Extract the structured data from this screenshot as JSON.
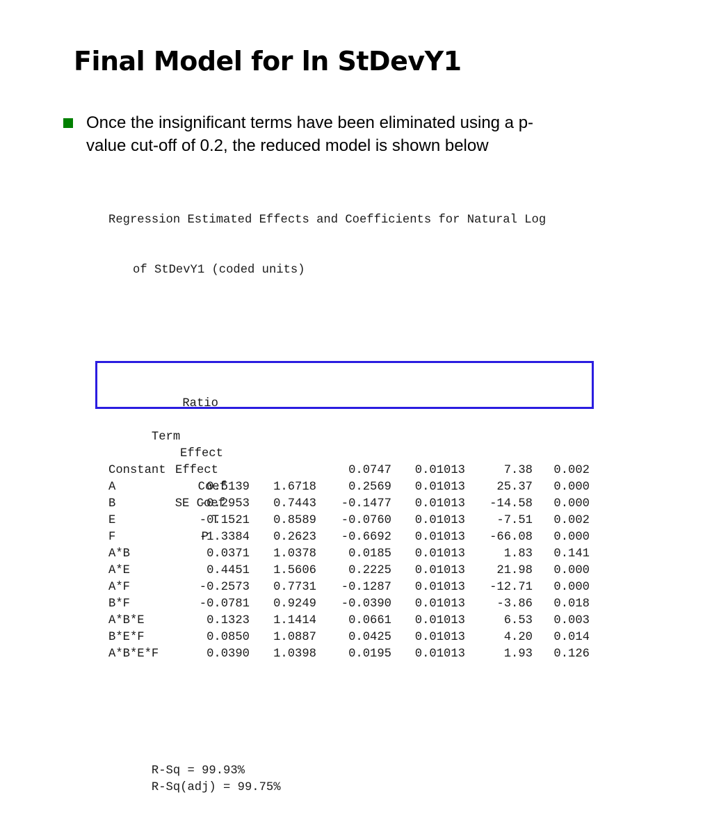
{
  "slide": {
    "title": "Final Model for ln StDevY1",
    "bullet": {
      "lines": [
        "Once the insignificant terms have been eliminated using a p-",
        "value cut-off of 0.2, the reduced model is shown below"
      ],
      "marker_color": "#008000"
    }
  },
  "regression_output": {
    "heading_line1": "Regression Estimated Effects and Coefficients for Natural Log",
    "heading_line2": "of StDevY1 (coded units)",
    "header_top": {
      "ratio": "Ratio"
    },
    "columns": [
      "Term",
      "Effect",
      "Effect",
      "Coef",
      "SE Coef",
      "T",
      "P"
    ],
    "rows": [
      [
        "Constant",
        "",
        "",
        "0.0747",
        "0.01013",
        "7.38",
        "0.002"
      ],
      [
        "A",
        "0.5139",
        "1.6718",
        "0.2569",
        "0.01013",
        "25.37",
        "0.000"
      ],
      [
        "B",
        "-0.2953",
        "0.7443",
        "-0.1477",
        "0.01013",
        "-14.58",
        "0.000"
      ],
      [
        "E",
        "-0.1521",
        "0.8589",
        "-0.0760",
        "0.01013",
        "-7.51",
        "0.002"
      ],
      [
        "F",
        "-1.3384",
        "0.2623",
        "-0.6692",
        "0.01013",
        "-66.08",
        "0.000"
      ],
      [
        "A*B",
        "0.0371",
        "1.0378",
        "0.0185",
        "0.01013",
        "1.83",
        "0.141"
      ],
      [
        "A*E",
        "0.4451",
        "1.5606",
        "0.2225",
        "0.01013",
        "21.98",
        "0.000"
      ],
      [
        "A*F",
        "-0.2573",
        "0.7731",
        "-0.1287",
        "0.01013",
        "-12.71",
        "0.000"
      ],
      [
        "B*F",
        "-0.0781",
        "0.9249",
        "-0.0390",
        "0.01013",
        "-3.86",
        "0.018"
      ],
      [
        "A*B*E",
        "0.1323",
        "1.1414",
        "0.0661",
        "0.01013",
        "6.53",
        "0.003"
      ],
      [
        "B*E*F",
        "0.0850",
        "1.0887",
        "0.0425",
        "0.01013",
        "4.20",
        "0.014"
      ],
      [
        "A*B*E*F",
        "0.0390",
        "1.0398",
        "0.0195",
        "0.01013",
        "1.93",
        "0.126"
      ]
    ],
    "highlighted_terms": [
      "A*E",
      "A*F",
      "B*F"
    ],
    "highlight_color": "#2b1de0",
    "r_sq": "R-Sq = 99.93%",
    "r_sq_adj": "R-Sq(adj) = 99.75%"
  }
}
